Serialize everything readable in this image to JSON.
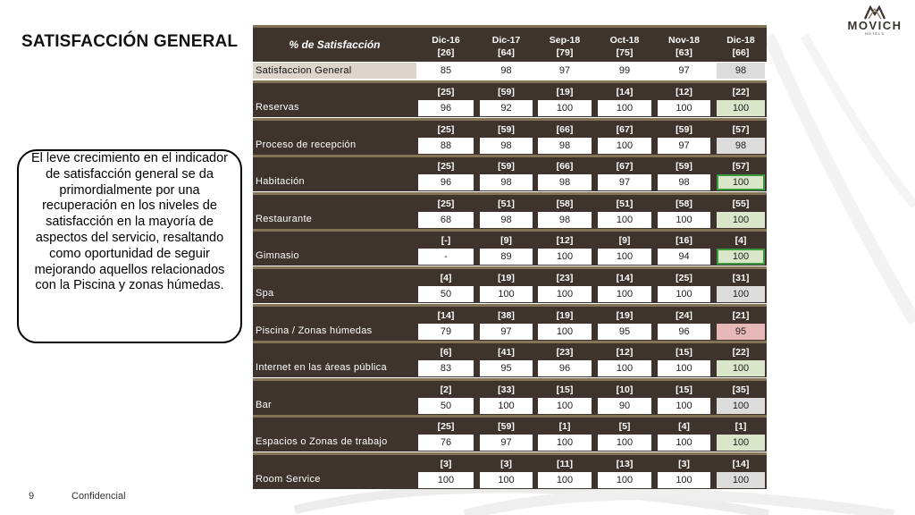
{
  "title": "SATISFACCIÓN GENERAL",
  "logo": {
    "name": "MOVICH",
    "sub": "HOTELS"
  },
  "callout": "El leve crecimiento en el indicador de satisfacción general se da primordialmente por una recuperación en los niveles de satisfacción en la mayoría de aspectos del servicio, resaltando como oportunidad de seguir mejorando aquellos relacionados con la Piscina y zonas húmedas.",
  "footer": {
    "page": "9",
    "label": "Confidencial"
  },
  "table": {
    "header_label": "% de Satisfacción",
    "periods": [
      {
        "name": "Dic-16",
        "n": "[26]"
      },
      {
        "name": "Dic-17",
        "n": "[64]"
      },
      {
        "name": "Sep-18",
        "n": "[79]"
      },
      {
        "name": "Oct-18",
        "n": "[75]"
      },
      {
        "name": "Nov-18",
        "n": "[63]"
      },
      {
        "name": "Dic-18",
        "n": "[66]"
      }
    ],
    "first_row": {
      "label": "Satisfaccion General",
      "values": [
        "85",
        "98",
        "97",
        "99",
        "97",
        "98"
      ],
      "highlight": ""
    },
    "rows": [
      {
        "label": "Reservas",
        "n": [
          "[25]",
          "[59]",
          "[19]",
          "[14]",
          "[12]",
          "[22]"
        ],
        "values": [
          "96",
          "92",
          "100",
          "100",
          "100",
          "100"
        ],
        "highlight": "green"
      },
      {
        "label": "Proceso de recepción",
        "n": [
          "[25]",
          "[59]",
          "[66]",
          "[67]",
          "[59]",
          "[57]"
        ],
        "values": [
          "88",
          "98",
          "98",
          "100",
          "97",
          "98"
        ],
        "highlight": ""
      },
      {
        "label": "Habitación",
        "n": [
          "[25]",
          "[59]",
          "[66]",
          "[67]",
          "[59]",
          "[57]"
        ],
        "values": [
          "96",
          "98",
          "98",
          "97",
          "98",
          "100"
        ],
        "highlight": "green-border"
      },
      {
        "label": "Restaurante",
        "n": [
          "[25]",
          "[51]",
          "[58]",
          "[51]",
          "[58]",
          "[55]"
        ],
        "values": [
          "68",
          "98",
          "98",
          "100",
          "100",
          "100"
        ],
        "highlight": "green"
      },
      {
        "label": "Gimnasio",
        "n": [
          "[-]",
          "[9]",
          "[12]",
          "[9]",
          "[16]",
          "[4]"
        ],
        "values": [
          "-",
          "89",
          "100",
          "100",
          "94",
          "100"
        ],
        "highlight": "green-border"
      },
      {
        "label": "Spa",
        "n": [
          "[4]",
          "[19]",
          "[23]",
          "[14]",
          "[25]",
          "[31]"
        ],
        "values": [
          "50",
          "100",
          "100",
          "100",
          "100",
          "100"
        ],
        "highlight": ""
      },
      {
        "label": "Piscina / Zonas húmedas",
        "n": [
          "[14]",
          "[38]",
          "[19]",
          "[19]",
          "[24]",
          "[21]"
        ],
        "values": [
          "79",
          "97",
          "100",
          "95",
          "96",
          "95"
        ],
        "highlight": "red"
      },
      {
        "label": "Internet en las áreas pública",
        "n": [
          "[6]",
          "[41]",
          "[23]",
          "[12]",
          "[15]",
          "[22]"
        ],
        "values": [
          "83",
          "95",
          "96",
          "100",
          "100",
          "100"
        ],
        "highlight": "green"
      },
      {
        "label": "Bar",
        "n": [
          "[2]",
          "[33]",
          "[15]",
          "[10]",
          "[15]",
          "[35]"
        ],
        "values": [
          "50",
          "100",
          "100",
          "90",
          "100",
          "100"
        ],
        "highlight": ""
      },
      {
        "label": "Espacios o Zonas de trabajo",
        "n": [
          "[25]",
          "[59]",
          "[1]",
          "[5]",
          "[4]",
          "[1]"
        ],
        "values": [
          "76",
          "97",
          "100",
          "100",
          "100",
          "100"
        ],
        "highlight": "green"
      },
      {
        "label": "Room Service",
        "n": [
          "[3]",
          "[3]",
          "[11]",
          "[13]",
          "[3]",
          "[14]"
        ],
        "values": [
          "100",
          "100",
          "100",
          "100",
          "100",
          "100"
        ],
        "highlight": ""
      }
    ]
  }
}
